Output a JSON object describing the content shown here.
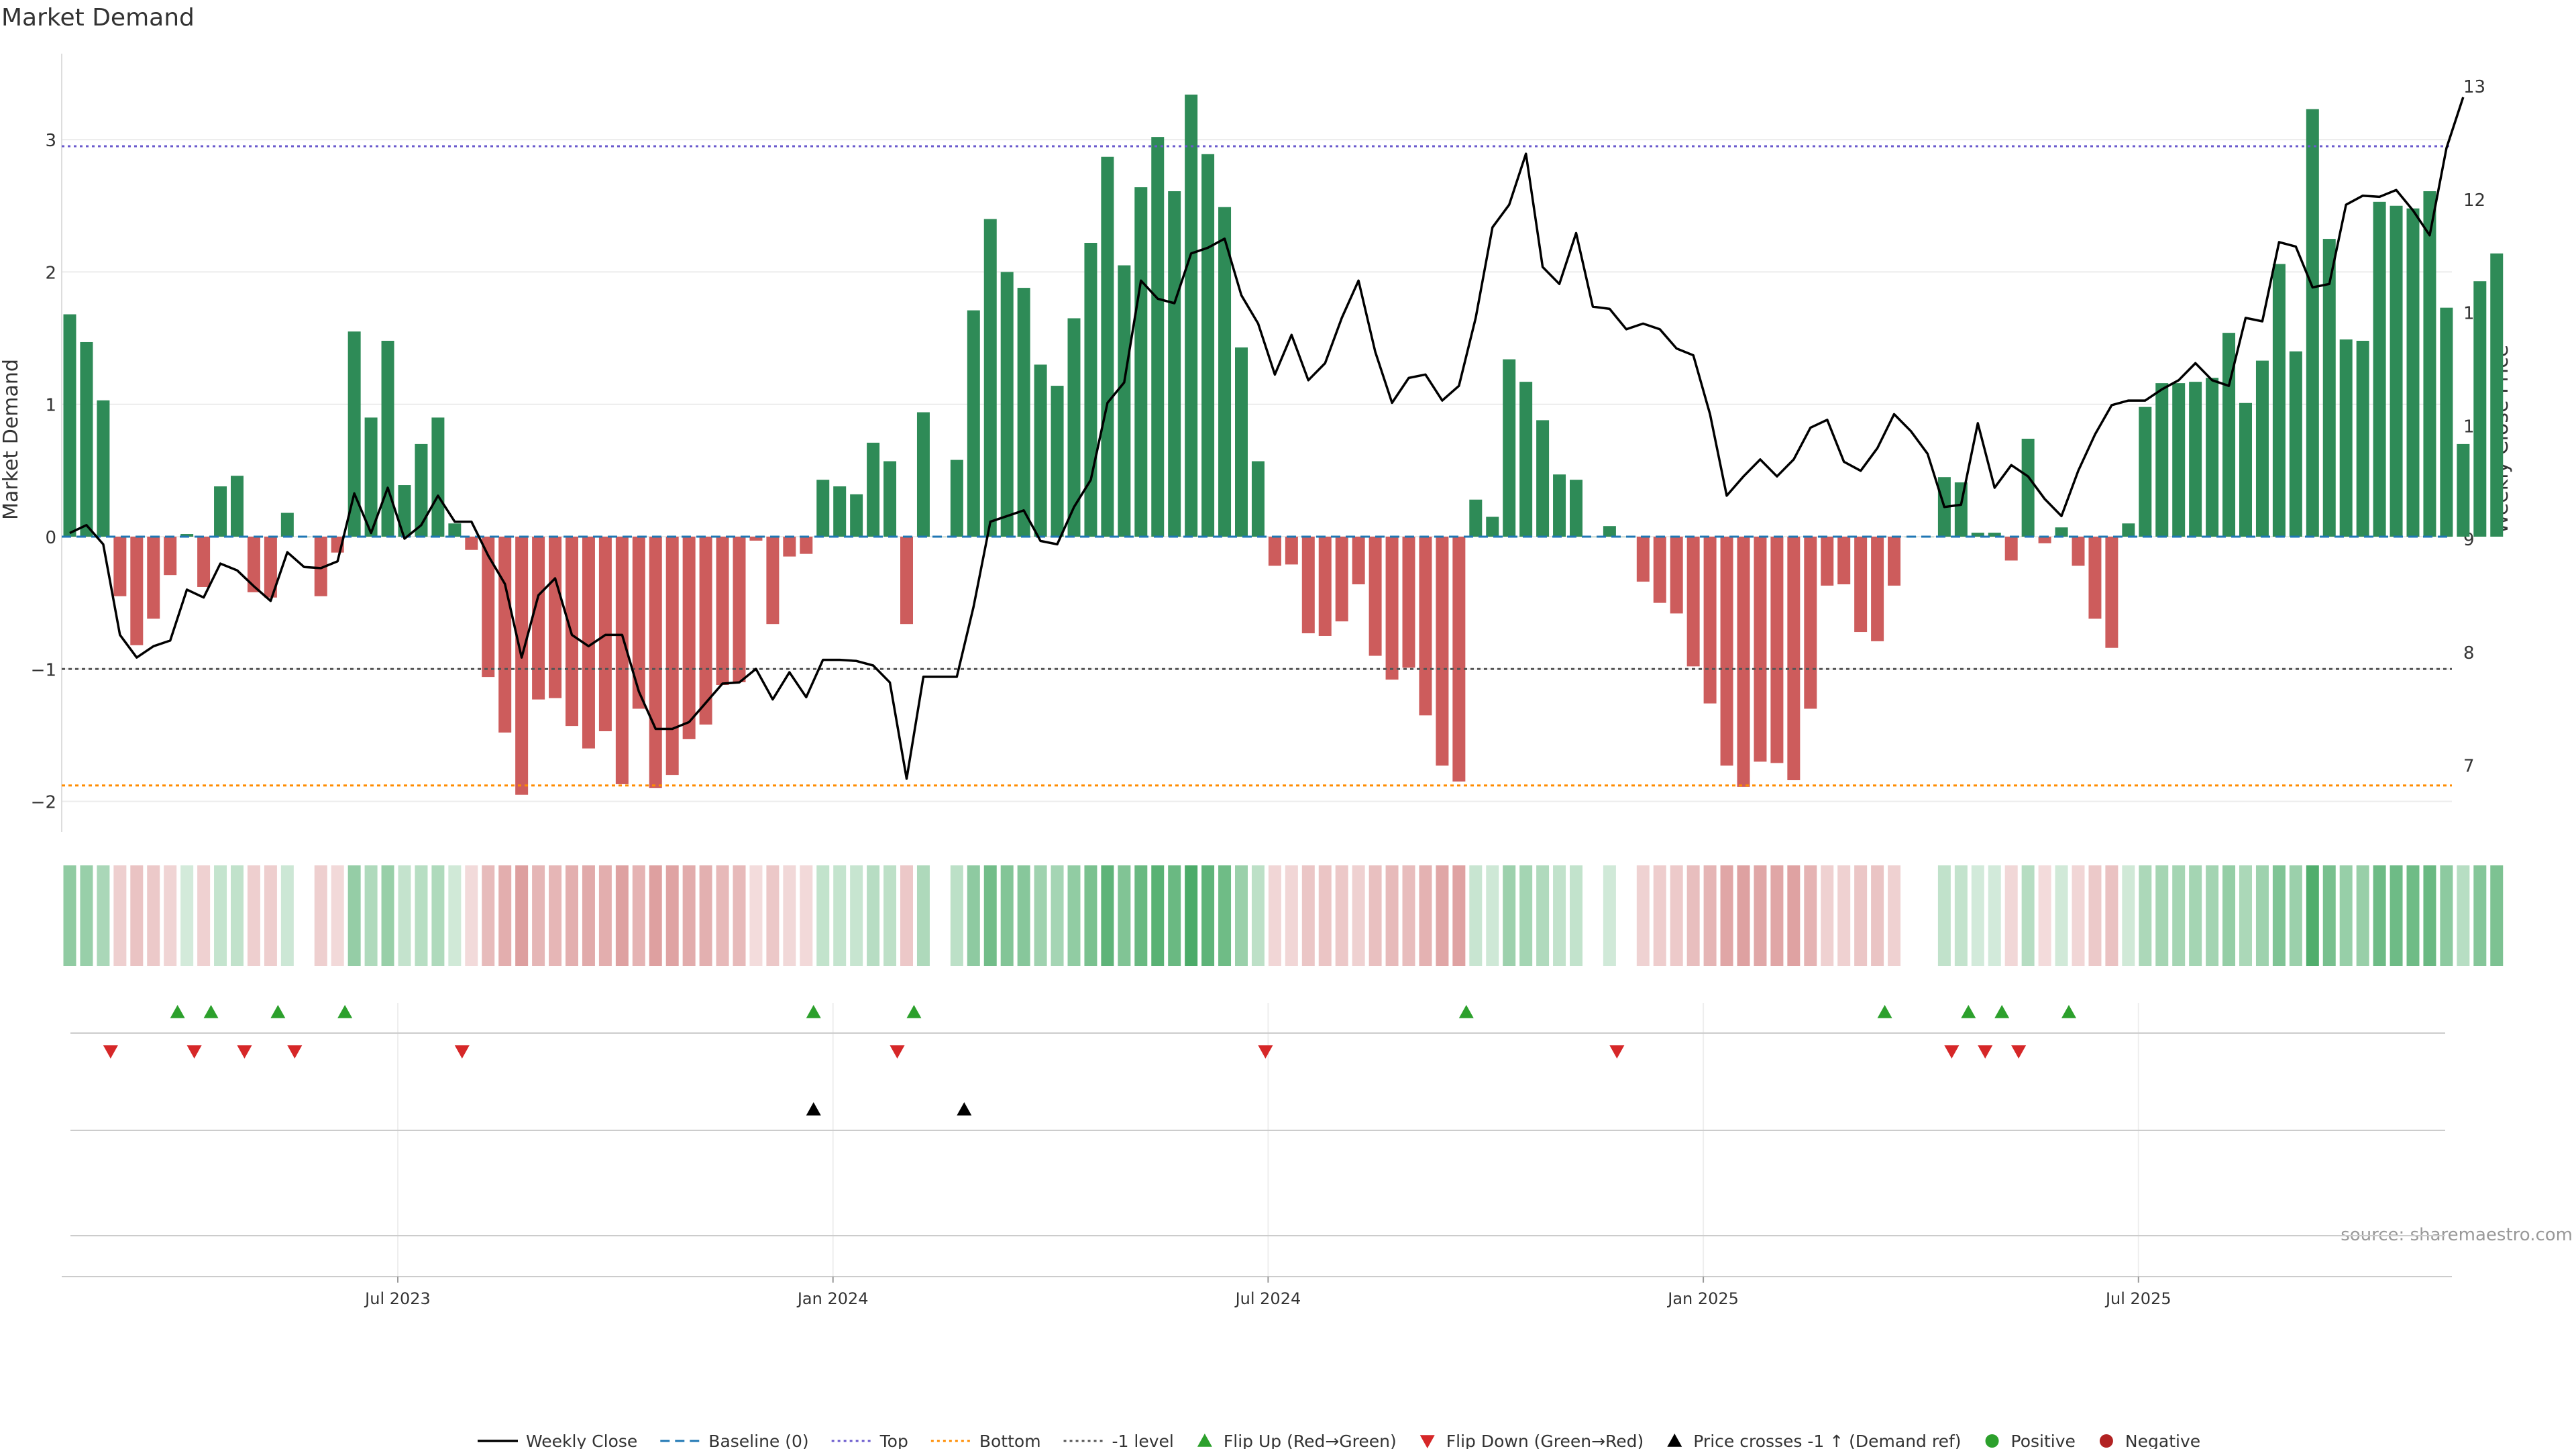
{
  "chart_data": {
    "type": "bar",
    "title": "Market Demand",
    "ylabel_left": "Market Demand",
    "ylabel_right": "Weekly Close Price",
    "source": "source: sharemaestro.com",
    "ylim_left": [
      -2.2,
      3.5
    ],
    "ylim_right": [
      6.75,
      13.3
    ],
    "yticks_left": [
      3,
      2,
      1,
      0,
      -1,
      -2
    ],
    "yticks_left_labels": [
      "3",
      "2",
      "1",
      "0",
      "−1",
      "−2"
    ],
    "yticks_right": [
      13,
      12,
      11,
      10,
      9,
      8,
      7
    ],
    "xtick_labels": [
      "Jul 2023",
      "Jan 2024",
      "Jul 2024",
      "Jan 2025",
      "Jul 2025"
    ],
    "xtick_week_index": [
      20,
      46,
      72,
      98,
      124
    ],
    "reference_lines": {
      "top": 2.95,
      "bottom": -1.88,
      "minus_one": -1.0,
      "baseline": 0
    },
    "colors": {
      "positive": "#2e8b57",
      "negative": "#cd5c5c",
      "price_line": "#000000",
      "baseline": "#1f77b4",
      "top_line": "#6a5acd",
      "bottom_line": "#ff8c00",
      "minus_one_line": "#555555",
      "flip_up": "#2ca02c",
      "flip_down": "#d62728",
      "price_cross": "#000000",
      "positive_dot": "#2ca02c",
      "negative_dot": "#b22222"
    },
    "week_index": [
      0,
      1,
      2,
      3,
      4,
      5,
      6,
      7,
      8,
      9,
      10,
      11,
      12,
      13,
      14,
      15,
      16,
      17,
      18,
      19,
      20,
      21,
      22,
      23,
      24,
      25,
      26,
      27,
      28,
      29,
      30,
      31,
      32,
      33,
      34,
      35,
      36,
      37,
      38,
      39,
      40,
      41,
      42,
      43,
      44,
      45,
      46,
      47,
      48,
      49,
      50,
      51,
      52,
      53,
      54,
      55,
      56,
      57,
      58,
      59,
      60,
      61,
      62,
      63,
      64,
      65,
      66,
      67,
      68,
      69,
      70,
      71,
      72,
      73,
      74,
      75,
      76,
      77,
      78,
      79,
      80,
      81,
      82,
      83,
      84,
      85,
      86,
      87,
      88,
      89,
      90,
      91,
      92,
      93,
      94,
      95,
      96,
      97,
      98,
      99,
      100,
      101,
      102,
      103,
      104,
      105,
      106,
      107,
      108,
      109,
      110,
      111,
      112,
      113,
      114,
      115,
      116,
      117,
      118,
      119,
      120,
      121,
      122,
      123,
      124,
      125,
      126,
      127,
      128,
      129,
      130,
      131,
      132,
      133,
      134,
      135,
      136,
      137,
      138,
      139,
      140,
      141,
      142,
      143
    ],
    "demand": [
      1.68,
      1.47,
      1.03,
      -0.45,
      -0.82,
      -0.62,
      -0.29,
      0.02,
      -0.38,
      0.38,
      0.46,
      -0.42,
      -0.46,
      0.18,
      0.0,
      -0.45,
      -0.12,
      1.55,
      0.9,
      1.48,
      0.39,
      0.7,
      0.9,
      0.1,
      -0.1,
      -1.06,
      -1.48,
      -1.95,
      -1.23,
      -1.22,
      -1.43,
      -1.6,
      -1.47,
      -1.87,
      -1.3,
      -1.9,
      -1.8,
      -1.53,
      -1.42,
      -1.12,
      -1.1,
      -0.03,
      -0.66,
      -0.15,
      -0.13,
      0.43,
      0.38,
      0.32,
      0.71,
      0.57,
      -0.66,
      0.94,
      0.0,
      0.58,
      1.71,
      2.4,
      2.0,
      1.88,
      1.3,
      1.14,
      1.65,
      2.22,
      2.87,
      2.05,
      2.64,
      3.02,
      2.61,
      3.34,
      2.89,
      2.49,
      1.43,
      0.57,
      -0.22,
      -0.21,
      -0.73,
      -0.75,
      -0.64,
      -0.36,
      -0.9,
      -1.08,
      -0.99,
      -1.35,
      -1.73,
      -1.85,
      0.28,
      0.15,
      1.34,
      1.17,
      0.88,
      0.47,
      0.43,
      0.0,
      0.08,
      0.0,
      -0.34,
      -0.5,
      -0.58,
      -0.98,
      -1.26,
      -1.73,
      -1.89,
      -1.7,
      -1.71,
      -1.84,
      -1.3,
      -0.37,
      -0.36,
      -0.72,
      -0.79,
      -0.37,
      0.0,
      0.0,
      0.45,
      0.41,
      0.03,
      0.03,
      -0.18,
      0.74,
      -0.05,
      0.07,
      -0.22,
      -0.62,
      -0.84,
      0.1,
      0.98,
      1.16,
      1.16,
      1.17,
      1.2,
      1.54,
      1.01,
      1.33,
      2.06,
      1.4,
      3.23,
      2.25,
      1.49,
      1.48,
      2.53,
      2.5,
      2.48,
      2.61,
      1.73,
      0.7,
      1.93,
      2.14
    ],
    "close": [
      9.05,
      9.12,
      8.95,
      8.15,
      7.95,
      8.05,
      8.1,
      8.55,
      8.48,
      8.78,
      8.72,
      8.58,
      8.45,
      8.88,
      8.75,
      8.74,
      8.8,
      9.4,
      9.05,
      9.45,
      9.0,
      9.12,
      9.38,
      9.15,
      9.15,
      8.85,
      8.6,
      7.95,
      8.5,
      8.65,
      8.15,
      8.05,
      8.15,
      8.15,
      7.65,
      7.32,
      7.32,
      7.38,
      7.55,
      7.72,
      7.73,
      7.85,
      7.58,
      7.82,
      7.6,
      7.93,
      7.93,
      7.92,
      7.88,
      7.73,
      6.88,
      7.78,
      7.78,
      7.78,
      8.4,
      9.15,
      9.2,
      9.25,
      8.98,
      8.95,
      9.28,
      9.52,
      10.2,
      10.38,
      11.28,
      11.12,
      11.08,
      11.52,
      11.57,
      11.65,
      11.15,
      10.9,
      10.45,
      10.8,
      10.4,
      10.55,
      10.95,
      11.28,
      10.65,
      10.2,
      10.42,
      10.45,
      10.22,
      10.35,
      10.95,
      11.75,
      11.95,
      12.4,
      11.4,
      11.25,
      11.7,
      11.05,
      11.03,
      10.85,
      10.9,
      10.85,
      10.68,
      10.62,
      10.1,
      9.38,
      9.55,
      9.7,
      9.55,
      9.7,
      9.98,
      10.05,
      9.68,
      9.6,
      9.8,
      10.1,
      9.95,
      9.75,
      9.28,
      9.3,
      10.02,
      9.45,
      9.65,
      9.55,
      9.35,
      9.2,
      9.6,
      9.92,
      10.18,
      10.22,
      10.22,
      10.32,
      10.4,
      10.55,
      10.4,
      10.35,
      10.95,
      10.92,
      11.62,
      11.58,
      11.22,
      11.25,
      11.95,
      12.03,
      12.02,
      12.08,
      11.9,
      11.68,
      12.45,
      12.9
    ],
    "flip_up_weeks": [
      7,
      9,
      13,
      17,
      45,
      51,
      84,
      109,
      114,
      116,
      120
    ],
    "flip_down_weeks": [
      3,
      8,
      11,
      14,
      24,
      50,
      72,
      93,
      113,
      115,
      117
    ],
    "price_cross_weeks": [
      45,
      54
    ],
    "legend": [
      {
        "label": "Weekly Close",
        "kind": "line"
      },
      {
        "label": "Baseline (0)",
        "kind": "dash"
      },
      {
        "label": "Top",
        "kind": "dot-top"
      },
      {
        "label": "Bottom",
        "kind": "dot-bottom"
      },
      {
        "label": "-1 level",
        "kind": "dot-minus"
      },
      {
        "label": "Flip Up (Red→Green)",
        "kind": "tri-up"
      },
      {
        "label": "Flip Down (Green→Red)",
        "kind": "tri-down"
      },
      {
        "label": "Price crosses -1 ↑ (Demand ref)",
        "kind": "tri-black"
      },
      {
        "label": "Positive",
        "kind": "dot-pos"
      },
      {
        "label": "Negative",
        "kind": "dot-neg"
      }
    ]
  }
}
